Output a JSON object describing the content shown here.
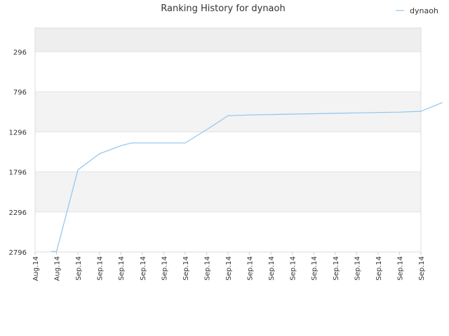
{
  "chart_data": {
    "type": "line",
    "title": "Ranking History for dynaoh",
    "xlabel": "",
    "ylabel": "",
    "y_reversed": true,
    "ylim": [
      2796,
      0
    ],
    "y_ticks": [
      "296",
      "796",
      "1296",
      "1796",
      "2296",
      "2796"
    ],
    "x_tick_labels": [
      "Aug.14",
      "Aug.14",
      "Sep.14",
      "Sep.14",
      "Sep.14",
      "Sep.14",
      "Sep.14",
      "Sep.14",
      "Sep.14",
      "Sep.14",
      "Sep.14",
      "Sep.14",
      "Sep.14",
      "Sep.14",
      "Sep.14",
      "Sep.14",
      "Sep.14",
      "Sep.14",
      "Sep.14"
    ],
    "legend": {
      "placement": "top-right"
    },
    "grid": true,
    "band_colors": [
      "#eeeeee",
      "#ffffff",
      "#f3f3f3",
      "#ffffff",
      "#f3f3f3",
      "#ffffff"
    ],
    "series": [
      {
        "name": "dynaoh",
        "color": "#90c4ee",
        "x": [
          0.75,
          1.0,
          2.0,
          3.0,
          4.0,
          4.5,
          5.0,
          6.0,
          7.0,
          8.0,
          9.0,
          10.0,
          11.0,
          12.0,
          13.0,
          14.0,
          15.0,
          16.0,
          17.0,
          18.0,
          19.0
        ],
        "y": [
          2790,
          2790,
          1770,
          1570,
          1470,
          1435,
          1435,
          1435,
          1435,
          1270,
          1095,
          1085,
          1080,
          1075,
          1070,
          1065,
          1060,
          1055,
          1050,
          1040,
          930
        ]
      }
    ]
  }
}
